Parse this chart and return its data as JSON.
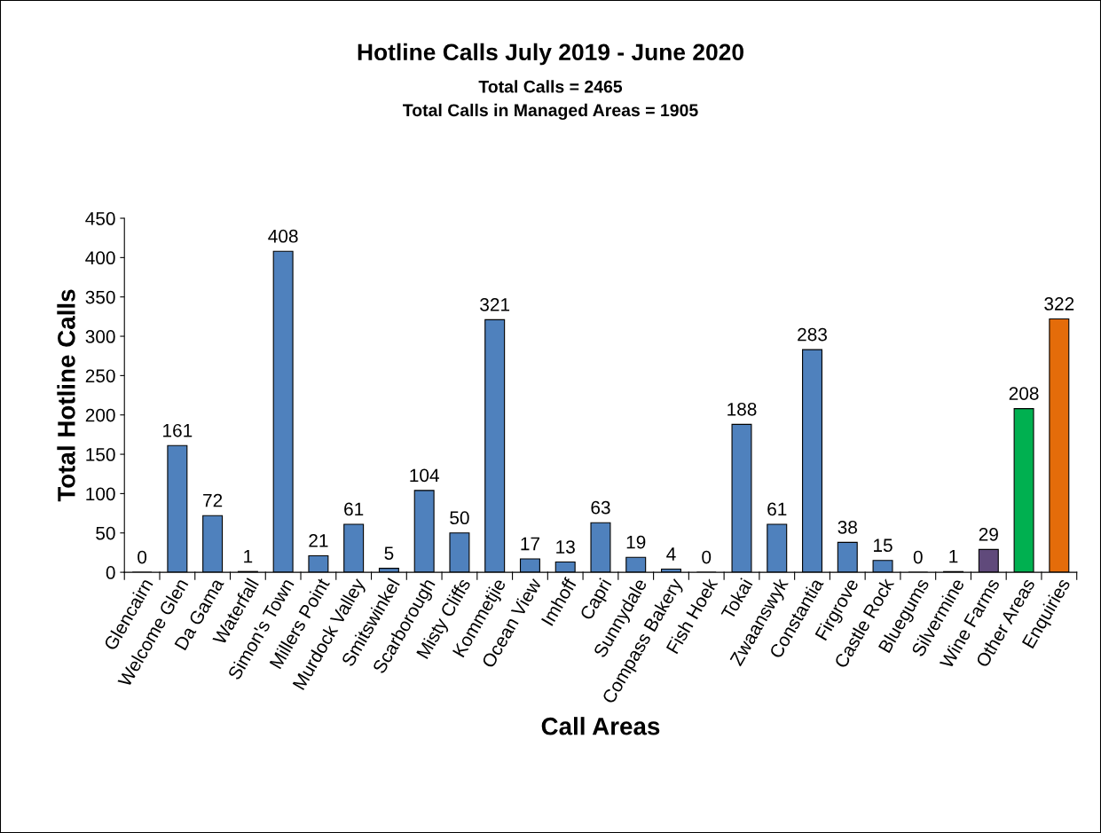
{
  "chart_data": {
    "type": "bar",
    "title": "Hotline Calls July 2019 - June 2020",
    "subtitle": "Total Calls = 2465\nTotal Calls in Managed Areas = 1905",
    "xlabel": "Call Areas",
    "ylabel": "Total Hotline Calls",
    "categories": [
      "Glencairn",
      "Welcome Glen",
      "Da Gama",
      "Waterfall",
      "Simon's Town",
      "Millers Point",
      "Murdock Valley",
      "Smitswinkel",
      "Scarborough",
      "Misty Cliffs",
      "Kommetjie",
      "Ocean View",
      "Imhoff",
      "Capri",
      "Sunnydale",
      "Compass Bakery",
      "Fish Hoek",
      "Tokai",
      "Zwaanswyk",
      "Constantia",
      "Firgrove",
      "Castle Rock",
      "Bluegums",
      "Silvermine",
      "Wine Farms",
      "Other Areas",
      "Enquiries"
    ],
    "values": [
      0,
      161,
      72,
      1,
      408,
      21,
      61,
      5,
      104,
      50,
      321,
      17,
      13,
      63,
      19,
      4,
      0,
      188,
      61,
      283,
      38,
      15,
      0,
      1,
      29,
      208,
      322
    ],
    "colors": [
      "#4f81bd",
      "#4f81bd",
      "#4f81bd",
      "#4f81bd",
      "#4f81bd",
      "#4f81bd",
      "#4f81bd",
      "#4f81bd",
      "#4f81bd",
      "#4f81bd",
      "#4f81bd",
      "#4f81bd",
      "#4f81bd",
      "#4f81bd",
      "#4f81bd",
      "#4f81bd",
      "#4f81bd",
      "#4f81bd",
      "#4f81bd",
      "#4f81bd",
      "#4f81bd",
      "#4f81bd",
      "#4f81bd",
      "#4f81bd",
      "#604a7b",
      "#00b050",
      "#e46c0a"
    ],
    "ylim": [
      0,
      450
    ],
    "yticks": [
      0,
      50,
      100,
      150,
      200,
      250,
      300,
      350,
      400,
      450
    ],
    "data_labels": true,
    "grid": false,
    "legend": false
  }
}
